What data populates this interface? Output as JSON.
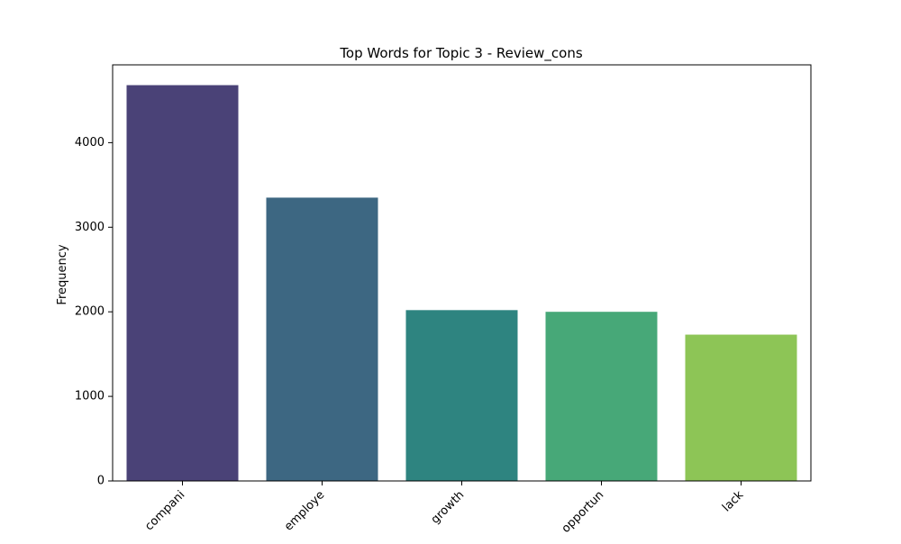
{
  "chart_data": {
    "type": "bar",
    "title": "Top Words for Topic 3 - Review_cons",
    "xlabel": "",
    "ylabel": "Frequency",
    "categories": [
      "compani",
      "employe",
      "growth",
      "opportun",
      "lack"
    ],
    "values": [
      4680,
      3350,
      2020,
      2000,
      1730
    ],
    "colors": [
      "#4a4277",
      "#3d6782",
      "#2e8480",
      "#47a878",
      "#8dc556"
    ],
    "ylim": [
      0,
      4920
    ],
    "yticks": [
      0,
      1000,
      2000,
      3000,
      4000
    ],
    "grid": false,
    "legend": "none"
  }
}
